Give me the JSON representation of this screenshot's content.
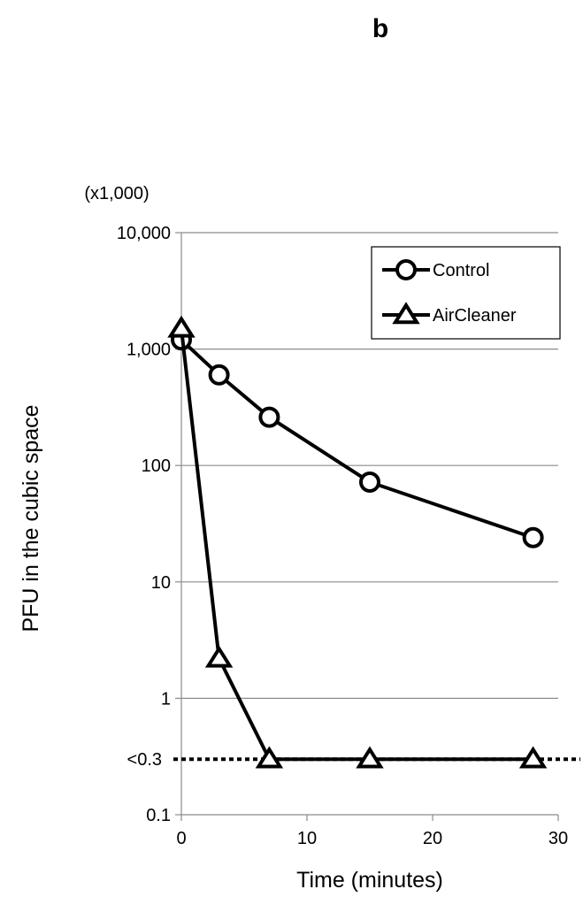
{
  "panel_label": "b",
  "chart_data": {
    "type": "line",
    "y_scale": "log",
    "y_multiplier_label": "(x1,000)",
    "xlabel": "Time (minutes)",
    "ylabel": "PFU in the cubic space",
    "xlim": [
      0,
      30
    ],
    "ylim": [
      0.1,
      10000
    ],
    "x_ticks": [
      0,
      10,
      20,
      30
    ],
    "x_tick_labels": [
      "0",
      "10",
      "20",
      "30"
    ],
    "y_ticks": [
      0.1,
      1,
      10,
      100,
      1000,
      10000
    ],
    "y_tick_labels": [
      "0.1",
      "1",
      "10",
      "100",
      "1,000",
      "10,000"
    ],
    "grid": "horizontal",
    "legend_position": "top-right",
    "detection_limit": {
      "value": 0.3,
      "label": "<0.3",
      "style": "dotted"
    },
    "series": [
      {
        "name": "Control",
        "marker": "circle",
        "x": [
          0,
          3,
          7,
          15,
          28
        ],
        "y": [
          1200,
          600,
          260,
          72,
          24
        ]
      },
      {
        "name": "AirCleaner",
        "marker": "triangle",
        "x": [
          0,
          3,
          7,
          15,
          28
        ],
        "y": [
          1500,
          2.2,
          0.3,
          0.3,
          0.3
        ]
      }
    ]
  }
}
